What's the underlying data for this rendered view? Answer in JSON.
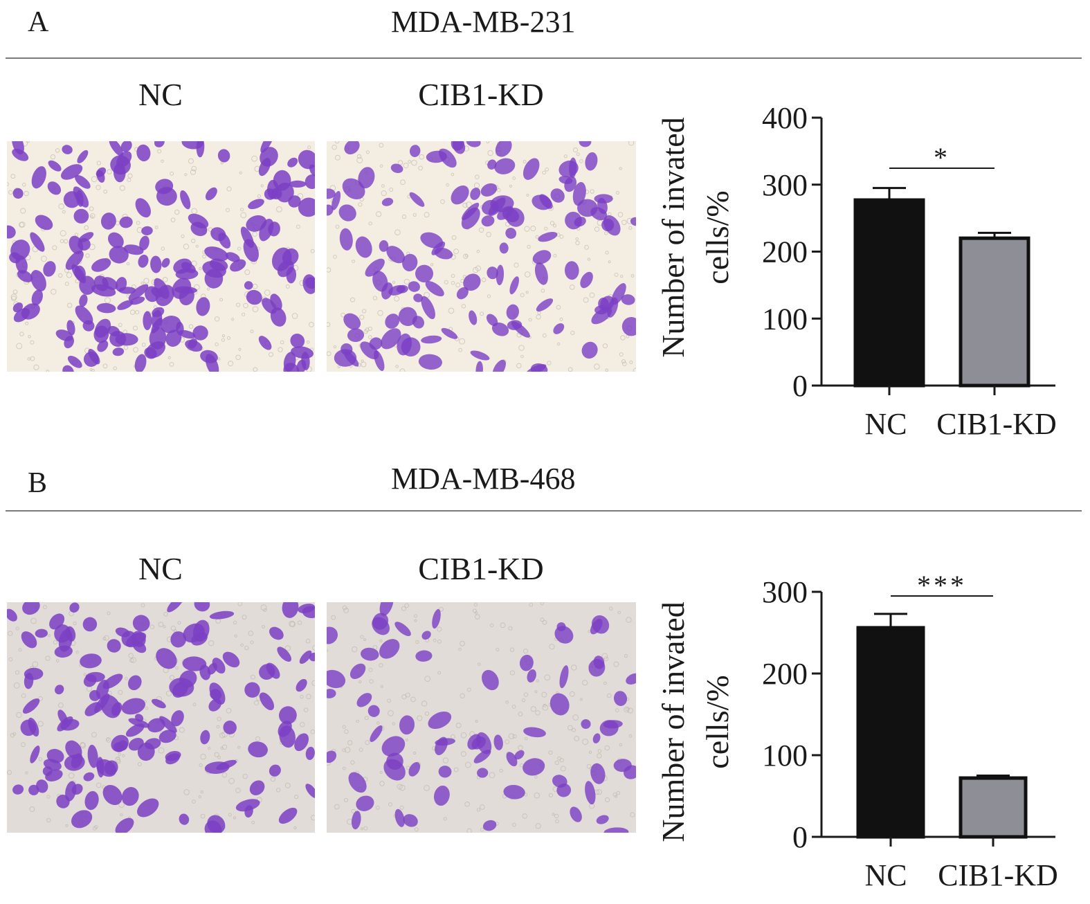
{
  "colors": {
    "nc_bar": "#111111",
    "kd_bar": "#8e8f96",
    "stain": "#7b3fc4",
    "background_231": "#f4eee2",
    "background_468": "#e2dcd8"
  },
  "panels": [
    {
      "letter": "A",
      "cell_line": "MDA-MB-231",
      "images": [
        {
          "label": "NC"
        },
        {
          "label": "CIB1-KD"
        }
      ]
    },
    {
      "letter": "B",
      "cell_line": "MDA-MB-468",
      "images": [
        {
          "label": "NC"
        },
        {
          "label": "CIB1-KD"
        }
      ]
    }
  ],
  "chart_data": [
    {
      "type": "bar",
      "categories": [
        "NC",
        "CIB1-KD"
      ],
      "values": [
        277,
        220
      ],
      "errors": [
        18,
        8
      ],
      "ylabel_line1": "Number of invated",
      "ylabel_line2": "cells/%",
      "ylim": [
        0,
        400
      ],
      "yticks": [
        "0",
        "100",
        "200",
        "300",
        "400"
      ],
      "significance": "*",
      "grid": false
    },
    {
      "type": "bar",
      "categories": [
        "NC",
        "CIB1-KD"
      ],
      "values": [
        256,
        72
      ],
      "errors": [
        17,
        3
      ],
      "ylabel_line1": "Number of invated",
      "ylabel_line2": "cells/%",
      "ylim": [
        0,
        300
      ],
      "yticks": [
        "0",
        "100",
        "200",
        "300"
      ],
      "significance": "***",
      "grid": false
    }
  ]
}
